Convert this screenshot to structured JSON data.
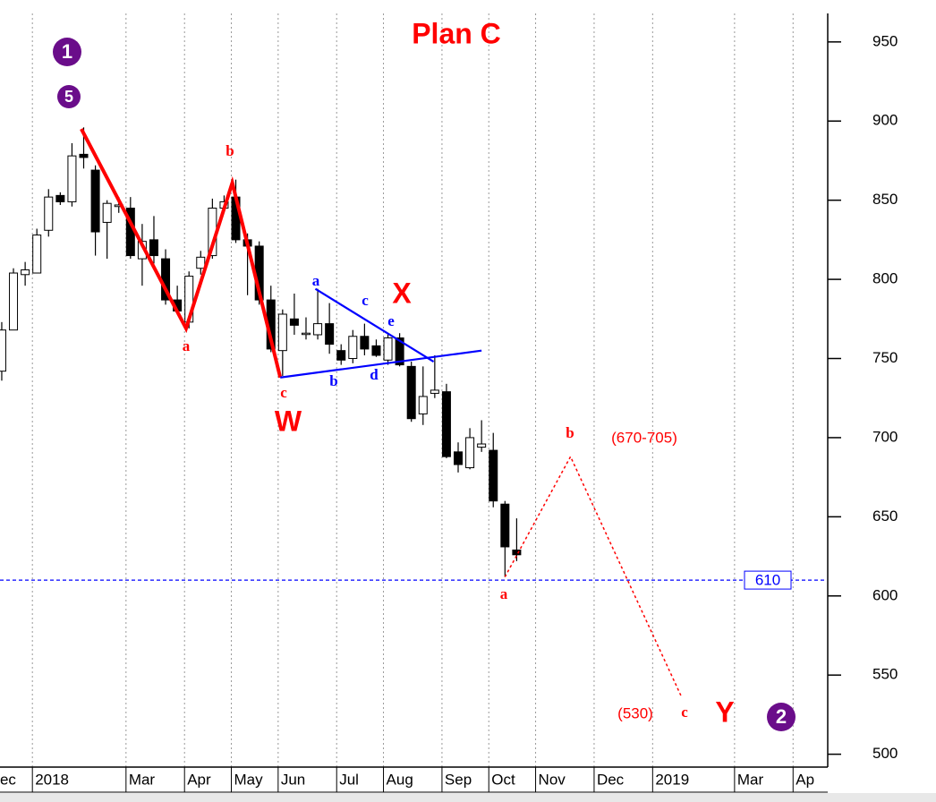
{
  "chart_data": {
    "type": "candlestick",
    "title": "Plan C",
    "categories": [
      "ec",
      null,
      null,
      "2018",
      null,
      null,
      null,
      null,
      null,
      null,
      null,
      "Mar",
      null,
      null,
      null,
      null,
      "Apr",
      null,
      null,
      null,
      "May",
      null,
      null,
      null,
      "Jun",
      null,
      null,
      null,
      null,
      "Jul",
      null,
      null,
      null,
      "Aug",
      null,
      null,
      null,
      null,
      "Sep",
      null,
      null,
      null,
      "Oct",
      null,
      null,
      null,
      "Nov",
      null,
      null,
      null,
      null,
      "Dec",
      null,
      null,
      null,
      null,
      "2019",
      null,
      null,
      null,
      null,
      null,
      null,
      "Mar",
      null,
      null,
      null,
      null,
      "Ap",
      null
    ],
    "open": [
      742,
      768,
      803,
      804,
      831,
      853,
      849,
      879,
      869,
      836,
      846,
      845,
      813,
      825,
      813,
      787,
      773,
      807,
      815,
      845,
      852,
      825,
      821,
      787,
      755,
      775,
      766,
      765,
      772,
      755,
      750,
      764,
      758,
      749,
      763,
      745,
      715,
      728,
      729,
      691,
      681,
      694,
      692,
      658,
      629,
      null,
      null,
      null,
      null,
      null,
      null,
      null,
      null,
      null,
      null,
      null,
      null,
      null,
      null,
      null,
      null,
      null,
      null,
      null,
      null,
      null,
      null,
      null,
      null,
      null
    ],
    "high": [
      773,
      807,
      811,
      832,
      857,
      855,
      886,
      896,
      872,
      850,
      852,
      852,
      835,
      840,
      819,
      796,
      805,
      818,
      851,
      853,
      863,
      829,
      824,
      796,
      781,
      791,
      776,
      794,
      785,
      759,
      768,
      772,
      762,
      766,
      766,
      748,
      745,
      752,
      734,
      697,
      706,
      711,
      703,
      660,
      649,
      null,
      null,
      null,
      null,
      null,
      null,
      null,
      null,
      null,
      null,
      null,
      null,
      null,
      null,
      null,
      null,
      null,
      null,
      null,
      null,
      null,
      null,
      null,
      null,
      null
    ],
    "low": [
      736,
      768,
      796,
      804,
      827,
      847,
      846,
      870,
      815,
      813,
      842,
      813,
      796,
      810,
      784,
      779,
      769,
      803,
      813,
      842,
      823,
      790,
      784,
      754,
      739,
      765,
      762,
      762,
      753,
      746,
      747,
      752,
      751,
      746,
      745,
      710,
      708,
      725,
      687,
      678,
      680,
      691,
      656,
      612,
      622,
      null,
      null,
      null,
      null,
      null,
      null,
      null,
      null,
      null,
      null,
      null,
      null,
      null,
      null,
      null,
      null,
      null,
      null,
      null,
      null,
      null,
      null,
      null,
      null,
      null
    ],
    "close": [
      768,
      804,
      806,
      828,
      852,
      849,
      878,
      877,
      830,
      848,
      847,
      815,
      824,
      815,
      787,
      780,
      802,
      814,
      845,
      849,
      825,
      821,
      787,
      756,
      778,
      771,
      766,
      772,
      759,
      749,
      764,
      756,
      752,
      763,
      746,
      712,
      726,
      730,
      688,
      683,
      700,
      696,
      660,
      631,
      626,
      null,
      null,
      null,
      null,
      null,
      null,
      null,
      null,
      null,
      null,
      null,
      null,
      null,
      null,
      null,
      null,
      null,
      null,
      null,
      null,
      null,
      null,
      null,
      null,
      null
    ],
    "up_color": "#ffffff",
    "down_color": "#000000",
    "ylim": [
      493,
      968
    ],
    "yticks": [
      500,
      550,
      600,
      650,
      700,
      750,
      800,
      850,
      900,
      950
    ],
    "grid": "x",
    "reference_line": {
      "value": 610,
      "color": "#0000ff"
    },
    "overlays": [
      {
        "color": "#ff0000",
        "style": "thick",
        "x": [
          6.8,
          15.75,
          19.7,
          23.8
        ],
        "values": [
          895,
          769,
          861,
          738
        ]
      },
      {
        "color": "#0000ff",
        "style": "solid",
        "x": [
          26.8,
          36.9
        ],
        "values": [
          794,
          748
        ]
      },
      {
        "color": "#0000ff",
        "style": "solid",
        "x": [
          23.8,
          41
        ],
        "values": [
          738,
          755
        ]
      },
      {
        "color": "#ff0000",
        "style": "dotted",
        "x": [
          43,
          48.6,
          58.1
        ],
        "values": [
          612,
          688,
          536
        ]
      }
    ],
    "annotations": [
      "1",
      "5",
      "b",
      "a",
      "c",
      "W",
      "a",
      "c",
      "X",
      "e",
      "b",
      "d",
      "b",
      "(670-705)",
      "a",
      "(530)",
      "c",
      "Y",
      "2"
    ]
  }
}
